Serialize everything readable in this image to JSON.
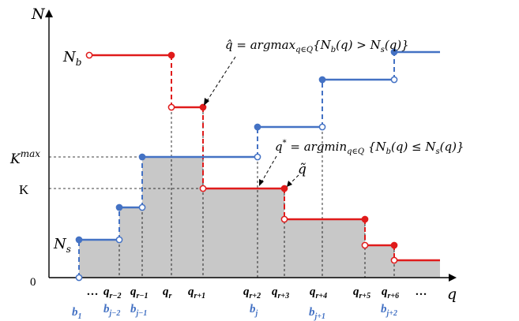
{
  "axes": {
    "y_label": "N",
    "x_label": "q",
    "origin_label": "0"
  },
  "colors": {
    "buyer": "#e01b1b",
    "seller": "#4472c4",
    "fill": "#c8c8c8",
    "ink": "#000000"
  },
  "levels": {
    "k_max": {
      "base": "K",
      "sup": "max"
    },
    "k": "K"
  },
  "curve_labels": {
    "nb": {
      "base": "N",
      "sub": "b"
    },
    "ns": {
      "base": "N",
      "sub": "s"
    }
  },
  "q_ticks": [
    {
      "base": "q",
      "sub": "r−2"
    },
    {
      "base": "q",
      "sub": "r−1"
    },
    {
      "base": "q",
      "sub": "r"
    },
    {
      "base": "q",
      "sub": "r+1"
    },
    {
      "base": "q",
      "sub": "r+2"
    },
    {
      "base": "q",
      "sub": "r+3"
    },
    {
      "base": "q",
      "sub": "r+4"
    },
    {
      "base": "q",
      "sub": "r+5"
    },
    {
      "base": "q",
      "sub": "r+6"
    }
  ],
  "b_ticks": [
    {
      "base": "b",
      "sub": "1"
    },
    {
      "base": "b",
      "sub": "j−2"
    },
    {
      "base": "b",
      "sub": "j−1"
    },
    {
      "base": "b",
      "sub": "j"
    },
    {
      "base": "b",
      "sub": "j+1"
    },
    {
      "base": "b",
      "sub": "j+2"
    }
  ],
  "ellipsis": "…",
  "annotations": {
    "q_hat": "q̂ = argmax",
    "q_hat_sub": "q∈Q",
    "q_hat_rest": "{N",
    "q_hat_rest2": "(q) > N",
    "q_hat_rest3": "(q)}",
    "q_star": "q",
    "q_star_sup": "*",
    "q_star_mid": " = argmin",
    "q_star_sub": "q∈Q",
    "q_star_rest": " {N",
    "q_star_rest2": "(q) ≤ N",
    "q_star_rest3": "(q)}",
    "q_tilde": "q̃",
    "sub_b": "b",
    "sub_s": "s"
  }
}
